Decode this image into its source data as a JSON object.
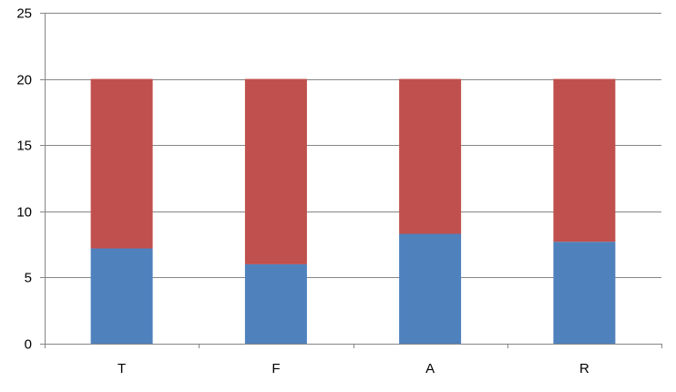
{
  "chart_data": {
    "type": "bar",
    "stacked": true,
    "categories": [
      "T",
      "F",
      "A",
      "R"
    ],
    "series": [
      {
        "values": [
          7.2,
          6.0,
          8.3,
          7.7
        ],
        "color": "#4F81BD"
      },
      {
        "values": [
          12.8,
          14.0,
          11.7,
          12.3
        ],
        "color": "#C0504D"
      }
    ],
    "title": "",
    "xlabel": "",
    "ylabel": "",
    "ylim": [
      0,
      25
    ],
    "yticks": [
      "0",
      "5",
      "10",
      "15",
      "20",
      "25"
    ],
    "grid": true,
    "legend": "none"
  }
}
